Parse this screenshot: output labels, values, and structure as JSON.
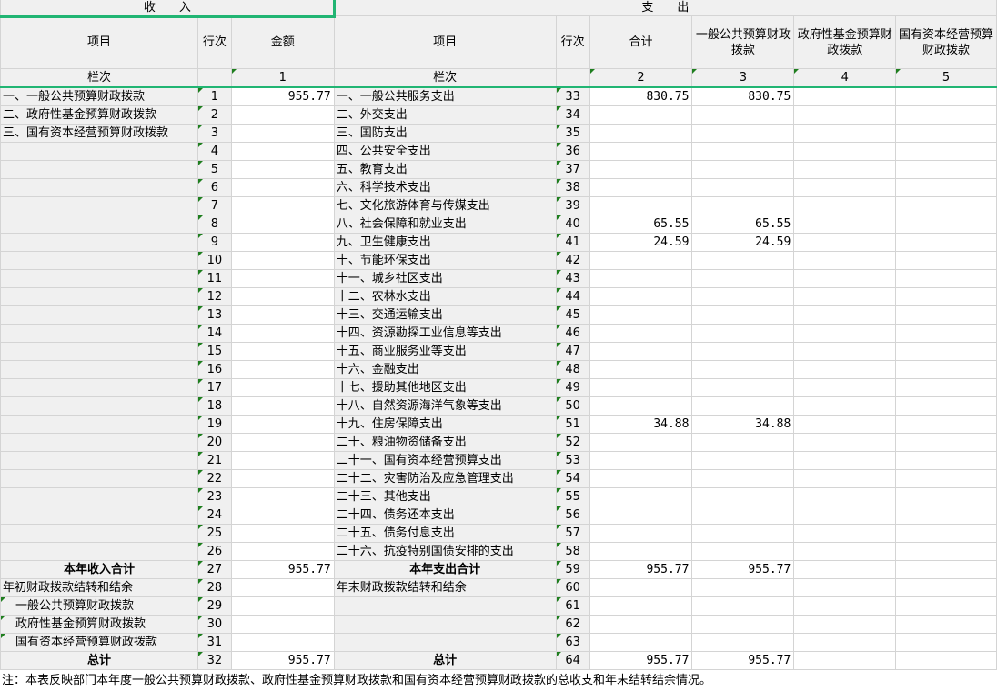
{
  "header": {
    "income_title": "收　　入",
    "expense_title": "支　　出",
    "col_item": "项目",
    "col_row": "行次",
    "col_amount": "金额",
    "col_exp_item": "项目",
    "col_exp_row": "行次",
    "col_total": "合计",
    "col_general": "一般公共预算财政拨款",
    "col_fund": "政府性基金预算财政拨款",
    "col_state": "国有资本经营预算财政拨款",
    "col_seq_label": "栏次",
    "col_seq_label2": "栏次",
    "seq": [
      "1",
      "2",
      "3",
      "4",
      "5"
    ]
  },
  "rows": [
    {
      "in_item": "一、一般公共预算财政拨款",
      "in_no": "1",
      "in_amt": "955.77",
      "ex_item": "一、一般公共服务支出",
      "ex_no": "33",
      "total": "830.75",
      "general": "830.75"
    },
    {
      "in_item": "二、政府性基金预算财政拨款",
      "in_no": "2",
      "ex_item": "二、外交支出",
      "ex_no": "34"
    },
    {
      "in_item": "三、国有资本经营预算财政拨款",
      "in_no": "3",
      "ex_item": "三、国防支出",
      "ex_no": "35"
    },
    {
      "in_no": "4",
      "ex_item": "四、公共安全支出",
      "ex_no": "36"
    },
    {
      "in_no": "5",
      "ex_item": "五、教育支出",
      "ex_no": "37"
    },
    {
      "in_no": "6",
      "ex_item": "六、科学技术支出",
      "ex_no": "38"
    },
    {
      "in_no": "7",
      "ex_item": "七、文化旅游体育与传媒支出",
      "ex_no": "39"
    },
    {
      "in_no": "8",
      "ex_item": "八、社会保障和就业支出",
      "ex_no": "40",
      "total": "65.55",
      "general": "65.55"
    },
    {
      "in_no": "9",
      "ex_item": "九、卫生健康支出",
      "ex_no": "41",
      "total": "24.59",
      "general": "24.59"
    },
    {
      "in_no": "10",
      "ex_item": "十、节能环保支出",
      "ex_no": "42"
    },
    {
      "in_no": "11",
      "ex_item": "十一、城乡社区支出",
      "ex_no": "43"
    },
    {
      "in_no": "12",
      "ex_item": "十二、农林水支出",
      "ex_no": "44"
    },
    {
      "in_no": "13",
      "ex_item": "十三、交通运输支出",
      "ex_no": "45"
    },
    {
      "in_no": "14",
      "ex_item": "十四、资源勘探工业信息等支出",
      "ex_no": "46"
    },
    {
      "in_no": "15",
      "ex_item": "十五、商业服务业等支出",
      "ex_no": "47"
    },
    {
      "in_no": "16",
      "ex_item": "十六、金融支出",
      "ex_no": "48"
    },
    {
      "in_no": "17",
      "ex_item": "十七、援助其他地区支出",
      "ex_no": "49"
    },
    {
      "in_no": "18",
      "ex_item": "十八、自然资源海洋气象等支出",
      "ex_no": "50"
    },
    {
      "in_no": "19",
      "ex_item": "十九、住房保障支出",
      "ex_no": "51",
      "total": "34.88",
      "general": "34.88"
    },
    {
      "in_no": "20",
      "ex_item": "二十、粮油物资储备支出",
      "ex_no": "52"
    },
    {
      "in_no": "21",
      "ex_item": "二十一、国有资本经营预算支出",
      "ex_no": "53"
    },
    {
      "in_no": "22",
      "ex_item": "二十二、灾害防治及应急管理支出",
      "ex_no": "54"
    },
    {
      "in_no": "23",
      "ex_item": "二十三、其他支出",
      "ex_no": "55"
    },
    {
      "in_no": "24",
      "ex_item": "二十四、债务还本支出",
      "ex_no": "56"
    },
    {
      "in_no": "25",
      "ex_item": "二十五、债务付息支出",
      "ex_no": "57"
    },
    {
      "in_no": "26",
      "ex_item": "二十六、抗疫特别国债安排的支出",
      "ex_no": "58"
    },
    {
      "in_item": "本年收入合计",
      "in_bold": true,
      "in_no": "27",
      "in_amt": "955.77",
      "ex_item": "本年支出合计",
      "ex_bold": true,
      "ex_no": "59",
      "total": "955.77",
      "general": "955.77"
    },
    {
      "in_item": "年初财政拨款结转和结余",
      "in_no": "28",
      "ex_item": "年末财政拨款结转和结余",
      "ex_no": "60"
    },
    {
      "in_item": "一般公共预算财政拨款",
      "in_indent": true,
      "in_no": "29",
      "ex_no": "61"
    },
    {
      "in_item": "政府性基金预算财政拨款",
      "in_indent": true,
      "in_no": "30",
      "ex_no": "62"
    },
    {
      "in_item": "国有资本经营预算财政拨款",
      "in_indent": true,
      "in_no": "31",
      "ex_no": "63"
    },
    {
      "in_item": "总计",
      "in_bold": true,
      "in_no": "32",
      "in_amt": "955.77",
      "ex_item": "总计",
      "ex_bold": true,
      "ex_no": "64",
      "total": "955.77",
      "general": "955.77"
    }
  ],
  "note": "注：本表反映部门本年度一般公共预算财政拨款、政府性基金预算财政拨款和国有资本经营预算财政拨款的总收支和年末结转结余情况。",
  "colors": {
    "selection": "#21b573",
    "cell_gray": "#f0f0f0",
    "grid": "#d4d4d4"
  }
}
